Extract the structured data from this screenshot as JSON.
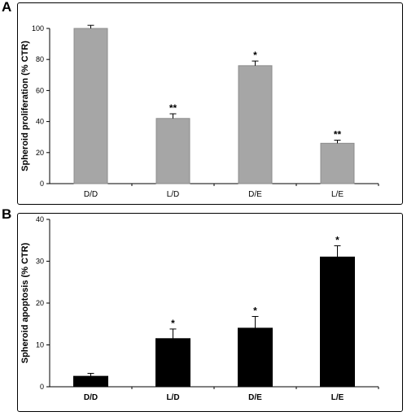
{
  "panels": {
    "a": {
      "letter": "A"
    },
    "b": {
      "letter": "B"
    }
  },
  "chart_data": [
    {
      "type": "bar",
      "panel": "A",
      "categories": [
        "D/D",
        "L/D",
        "D/E",
        "L/E"
      ],
      "values": [
        100,
        42,
        76,
        26
      ],
      "errors": [
        2,
        3,
        3,
        2
      ],
      "significance": [
        "",
        "**",
        "*",
        "**"
      ],
      "ylabel": "Spheroid proliferation (% CTR)",
      "xlabel": "",
      "title": "",
      "ylim": [
        0,
        100
      ],
      "yticks": [
        0,
        20,
        40,
        60,
        80,
        100
      ],
      "bar_color": "#a6a6a6",
      "bar_edge": "#8c8c8c",
      "grid": false
    },
    {
      "type": "bar",
      "panel": "B",
      "categories": [
        "D/D",
        "L/D",
        "D/E",
        "L/E"
      ],
      "values": [
        2.5,
        11.5,
        14,
        31
      ],
      "errors": [
        0.7,
        2.3,
        2.8,
        2.7
      ],
      "significance": [
        "",
        "*",
        "*",
        "*"
      ],
      "ylabel": "Spheroid apoptosis (% CTR)",
      "xlabel": "",
      "title": "",
      "ylim": [
        0,
        40
      ],
      "yticks": [
        0,
        10,
        20,
        30,
        40
      ],
      "bar_color": "#000000",
      "bar_edge": "#000000",
      "grid": false
    }
  ]
}
